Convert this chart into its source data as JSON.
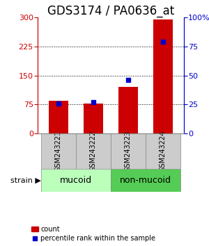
{
  "title": "GDS3174 / PA0636_at",
  "samples": [
    "GSM243221",
    "GSM243222",
    "GSM243223",
    "GSM243224"
  ],
  "counts": [
    85,
    78,
    120,
    295
  ],
  "percentiles": [
    26,
    27,
    46,
    79
  ],
  "ylim_left": [
    0,
    300
  ],
  "ylim_right": [
    0,
    100
  ],
  "yticks_left": [
    0,
    75,
    150,
    225,
    300
  ],
  "yticks_right": [
    0,
    25,
    50,
    75,
    100
  ],
  "ytick_labels_right": [
    "0",
    "25",
    "50",
    "75",
    "100%"
  ],
  "bar_color": "#cc0000",
  "marker_color": "#0000cc",
  "grid_color": "#000000",
  "group_labels": [
    "mucoid",
    "non-mucoid"
  ],
  "group_colors": [
    "#bbffbb",
    "#55cc55"
  ],
  "strain_label": "strain",
  "legend_count_label": "count",
  "legend_pct_label": "percentile rank within the sample",
  "bar_width": 0.55,
  "title_fontsize": 12,
  "tick_fontsize": 8,
  "group_label_fontsize": 9,
  "sample_label_fontsize": 7,
  "legend_fontsize": 7,
  "bg_color": "#ffffff",
  "sample_box_color": "#cccccc",
  "spine_color": "#888888"
}
